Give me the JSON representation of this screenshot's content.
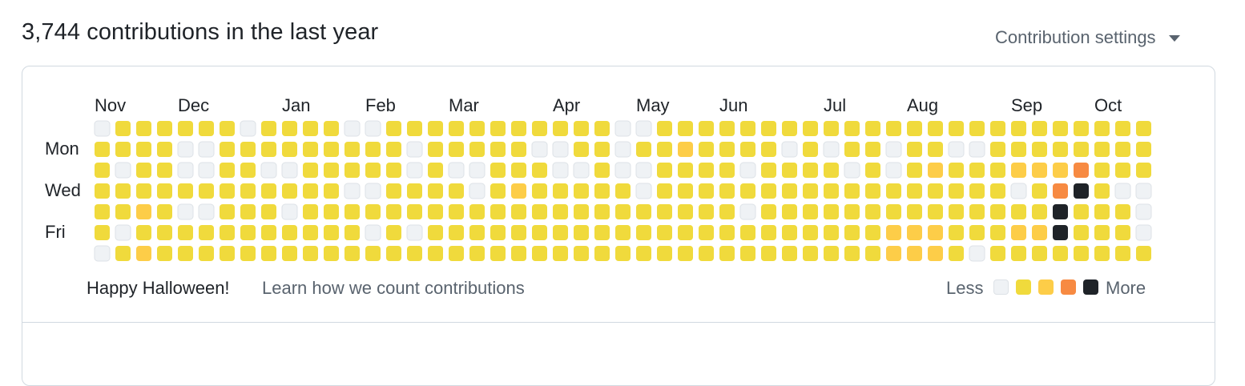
{
  "header": {
    "title": "3,744 contributions in the last year",
    "settings_label": "Contribution settings"
  },
  "months": [
    "Nov",
    "Dec",
    "Jan",
    "Feb",
    "Mar",
    "Apr",
    "May",
    "Jun",
    "Jul",
    "Aug",
    "Sep",
    "Oct"
  ],
  "day_labels": [
    "Mon",
    "Wed",
    "Fri"
  ],
  "footer": {
    "message": "Happy Halloween!",
    "learn_link": "Learn how we count contributions",
    "less_label": "Less",
    "more_label": "More"
  },
  "colors": {
    "level0": "#eff2f5",
    "level1": "#f0da3c",
    "level2": "#fdcd48",
    "level3": "#f78a42",
    "level4": "#1f2328",
    "border": "#d1d9e0",
    "muted_text": "#59636e"
  },
  "weeks": [
    "0111110",
    "1101101",
    "1111212",
    "1111111",
    "1001011",
    "1001011",
    "1111111",
    "0111111",
    "1101111",
    "1101011",
    "1111111",
    "1111111",
    "0110111",
    "0110101",
    "1111111",
    "1001101",
    "1111111",
    "1101111",
    "1100111",
    "1111111",
    "1112111",
    "1011111",
    "1001111",
    "1101111",
    "1111111",
    "0001111",
    "0100111",
    "1111111",
    "1211111",
    "1111111",
    "1111111",
    "1101011",
    "1111111",
    "1011111",
    "1111111",
    "1011111",
    "1101111",
    "1111111",
    "1001122",
    "1111122",
    "1121122",
    "1011111",
    "1011110",
    "1111111",
    "1120121",
    "1121121",
    "1123441",
    "1134111",
    "1111111",
    "1110111",
    "1110001"
  ]
}
